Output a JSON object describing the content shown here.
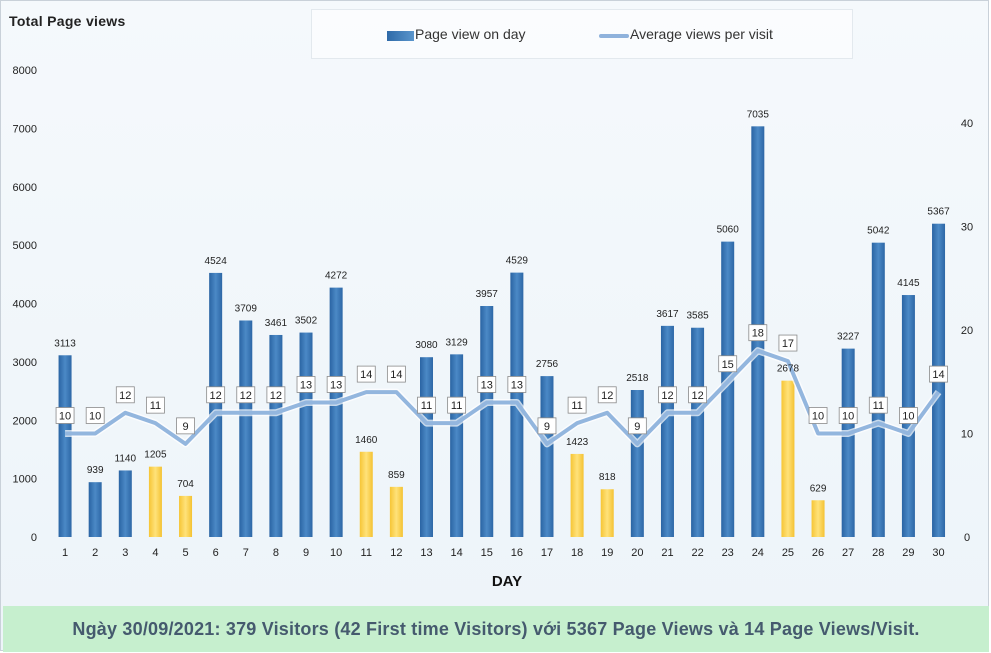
{
  "chart_data": {
    "type": "bar",
    "title": "Total Page views",
    "xlabel": "DAY",
    "ylabel": "",
    "ylim": [
      0,
      8000
    ],
    "y2lim": [
      0,
      45
    ],
    "yticks": [
      0,
      1000,
      2000,
      3000,
      4000,
      5000,
      6000,
      7000,
      8000
    ],
    "y2ticks": [
      0,
      10,
      20,
      30,
      40
    ],
    "categories": [
      "1",
      "2",
      "3",
      "4",
      "5",
      "6",
      "7",
      "8",
      "9",
      "10",
      "11",
      "12",
      "13",
      "14",
      "15",
      "16",
      "17",
      "18",
      "19",
      "20",
      "21",
      "22",
      "23",
      "24",
      "25",
      "26",
      "27",
      "28",
      "29",
      "30"
    ],
    "series": [
      {
        "name": "Page view on day",
        "type": "bar",
        "axis": "left",
        "values": [
          3113,
          939,
          1140,
          1205,
          704,
          4524,
          3709,
          3461,
          3502,
          4272,
          1460,
          859,
          3080,
          3129,
          3957,
          4529,
          2756,
          1423,
          818,
          2518,
          3617,
          3585,
          5060,
          7035,
          2678,
          629,
          3227,
          5042,
          4145,
          5367
        ],
        "highlight_days": [
          "4",
          "5",
          "11",
          "12",
          "18",
          "19",
          "25",
          "26"
        ]
      },
      {
        "name": "Average views per visit",
        "type": "line",
        "axis": "right",
        "values": [
          10,
          10,
          12,
          11,
          9,
          12,
          12,
          12,
          13,
          13,
          14,
          14,
          11,
          11,
          13,
          13,
          9,
          11,
          12,
          9,
          12,
          12,
          15,
          18,
          17,
          10,
          10,
          11,
          10,
          14
        ]
      }
    ],
    "colors": {
      "bar": "#3a77b6",
      "bar_highlight": "#fdd660",
      "line": "#93b6de"
    },
    "grid": false,
    "legend": "top-center"
  },
  "footer": {
    "text": "Ngày 30/09/2021: 379 Visitors (42 First time Visitors) với 5367 Page Views và 14 Page Views/Visit."
  }
}
